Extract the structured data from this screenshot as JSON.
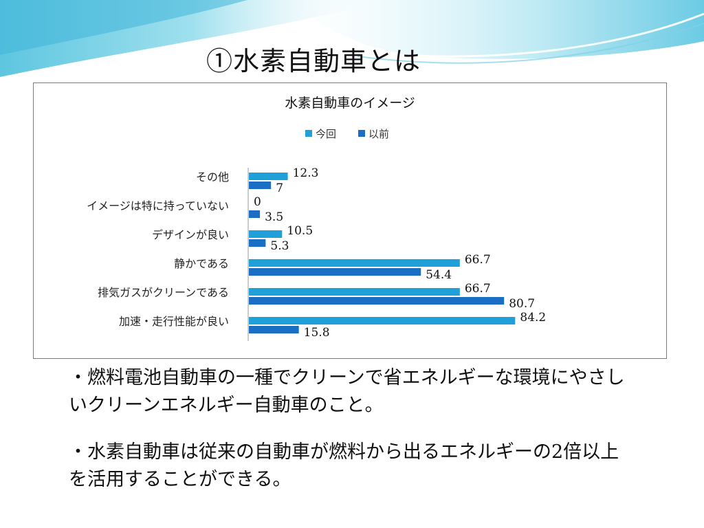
{
  "slide": {
    "title": "①水素自動車とは",
    "bullets": [
      "・燃料電池自動車の一種でクリーンで省エネルギーな環境にやさしいクリーンエネルギー自動車のこと。",
      "・水素自動車は従来の自動車が燃料から出るエネルギーの2倍以上を活用することができる。"
    ]
  },
  "colors": {
    "series_current": "#1fa0d8",
    "series_previous": "#1a6fc4",
    "axis": "#999999"
  },
  "chart_data": {
    "type": "bar",
    "orientation": "horizontal",
    "title": "水素自動車のイメージ",
    "legend_position": "top",
    "grid": false,
    "categories": [
      "その他",
      "イメージは特に持っていない",
      "デザインが良い",
      "静かである",
      "排気ガスがクリーンである",
      "加速・走行性能が良い"
    ],
    "series": [
      {
        "name": "今回",
        "values": [
          12.3,
          0,
          10.5,
          66.7,
          66.7,
          84.2
        ]
      },
      {
        "name": "以前",
        "values": [
          7,
          3.5,
          5.3,
          54.4,
          80.7,
          15.8
        ]
      }
    ],
    "value_labels": [
      [
        "12.3",
        "0",
        "10.5",
        "66.7",
        "66.7",
        "84.2"
      ],
      [
        "7",
        "3.5",
        "5.3",
        "54.4",
        "80.7",
        "15.8"
      ]
    ],
    "xlim": [
      0,
      100
    ]
  }
}
